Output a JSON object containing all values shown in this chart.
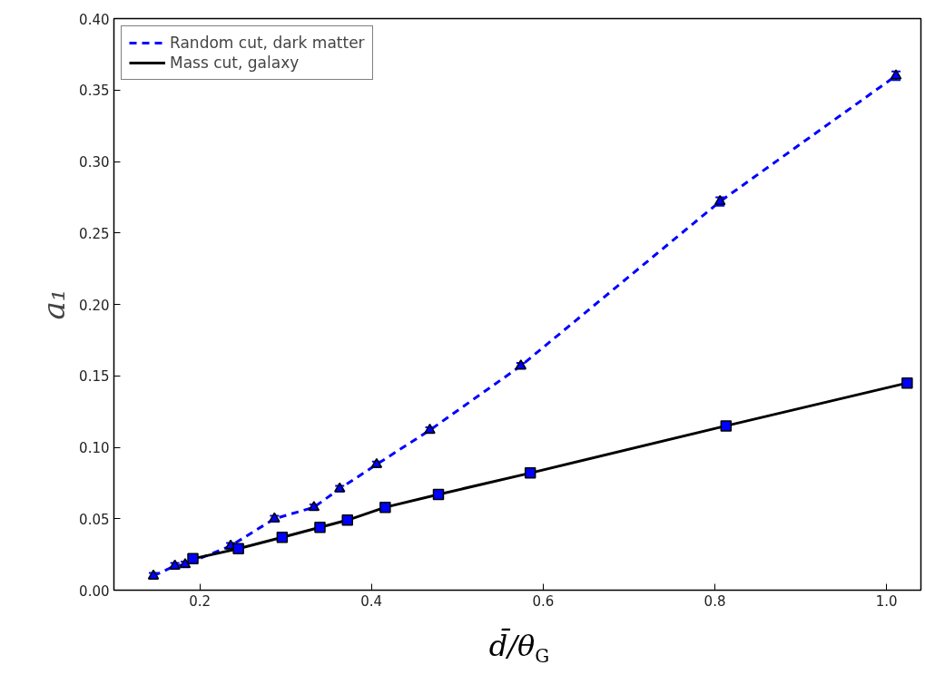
{
  "chart_data": {
    "type": "line",
    "xlabel": "d̄/θ$_{G}$",
    "ylabel": "a₁",
    "xlim": [
      0.1,
      1.04
    ],
    "ylim": [
      0,
      0.4
    ],
    "xticks": [
      0.2,
      0.4,
      0.6,
      0.8,
      {
        "value": 1,
        "label": "1.0"
      }
    ],
    "yticks": [
      {
        "value": 0,
        "label": "0.00"
      },
      {
        "value": 0.05,
        "label": "0.05"
      },
      {
        "value": 0.1,
        "label": "0.10"
      },
      {
        "value": 0.15,
        "label": "0.15"
      },
      {
        "value": 0.2,
        "label": "0.20"
      },
      {
        "value": 0.25,
        "label": "0.25"
      },
      {
        "value": 0.3,
        "label": "0.30"
      },
      {
        "value": 0.35,
        "label": "0.35"
      },
      {
        "value": 0.4,
        "label": "0.40"
      }
    ],
    "grid": false,
    "legend": "top left",
    "series": [
      {
        "name": "Random cut, dark matter",
        "color": "#0000ff",
        "line_style": "dashed",
        "marker": "triangle",
        "x": [
          0.146,
          0.171,
          0.183,
          0.236,
          0.287,
          0.333,
          0.363,
          0.406,
          0.468,
          0.574,
          0.806,
          1.011
        ],
        "values": [
          0.01,
          0.017,
          0.018,
          0.031,
          0.05,
          0.058,
          0.071,
          0.088,
          0.112,
          0.157,
          0.272,
          0.36
        ],
        "errors": [
          0.002,
          0.002,
          0.002,
          0.002,
          0.002,
          0.002,
          0.002,
          0.002,
          0.002,
          0.002,
          0.003,
          0.003
        ]
      },
      {
        "name": "Mass cut, galaxy",
        "color": "#000000",
        "line_style": "solid",
        "marker": "square",
        "x": [
          0.192,
          0.245,
          0.296,
          0.34,
          0.372,
          0.416,
          0.478,
          0.585,
          0.813,
          1.024
        ],
        "values": [
          0.022,
          0.029,
          0.037,
          0.044,
          0.049,
          0.058,
          0.067,
          0.082,
          0.115,
          0.145
        ],
        "errors": [
          0.002,
          0.002,
          0.002,
          0.002,
          0.002,
          0.002,
          0.002,
          0.002,
          0.002,
          0.002
        ]
      }
    ]
  }
}
